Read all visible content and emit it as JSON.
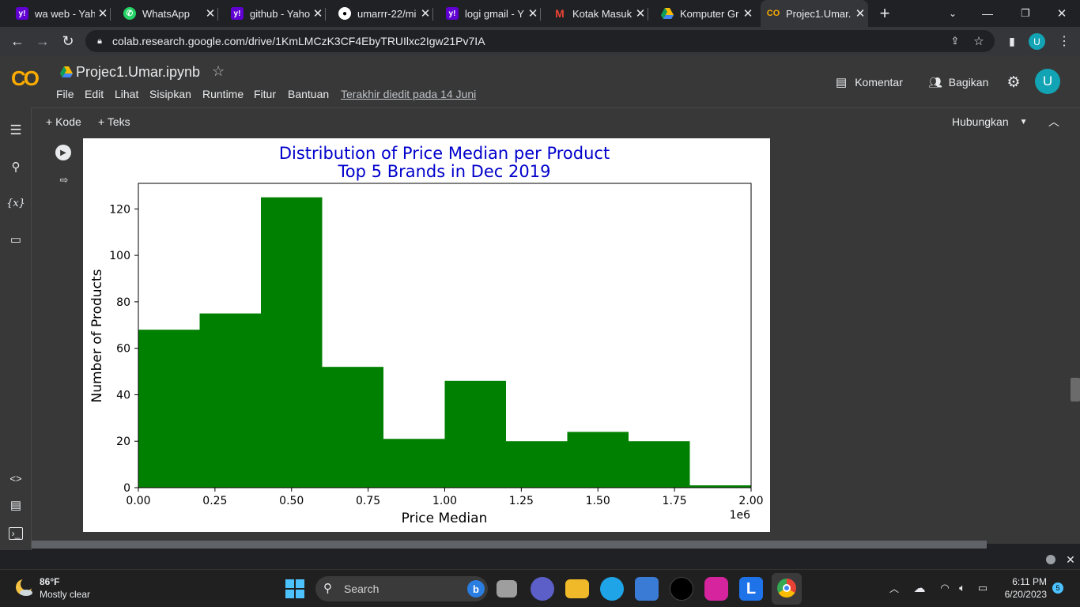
{
  "browser": {
    "tabs": [
      {
        "title": "wa web - Yah",
        "favicon": "yahoo-icon",
        "color": "#6001d2"
      },
      {
        "title": "WhatsApp",
        "favicon": "whatsapp-icon",
        "color": "#25d366"
      },
      {
        "title": "github - Yaho",
        "favicon": "yahoo-icon",
        "color": "#6001d2"
      },
      {
        "title": "umarrr-22/mi",
        "favicon": "github-icon",
        "color": "#ffffff"
      },
      {
        "title": "logi gmail - Y",
        "favicon": "yahoo-icon",
        "color": "#6001d2"
      },
      {
        "title": "Kotak Masuk",
        "favicon": "gmail-icon",
        "color": "#ea4335"
      },
      {
        "title": "Komputer Gr",
        "favicon": "drive-icon",
        "color": "#fbbc04"
      },
      {
        "title": "Projec1.Umar.",
        "favicon": "colab-icon",
        "color": "#f9ab00"
      }
    ],
    "url": "colab.research.google.com/drive/1KmLMCzK3CF4EbyTRUIlxc2Igw21Pv7IA"
  },
  "colab": {
    "logo": "CO",
    "notebook_title": "Projec1.Umar.ipynb",
    "menu": [
      "File",
      "Edit",
      "Lihat",
      "Sisipkan",
      "Runtime",
      "Fitur",
      "Bantuan"
    ],
    "last_edited": "Terakhir diedit pada 14 Juni",
    "comment_label": "Komentar",
    "share_label": "Bagikan",
    "avatar_letter": "U",
    "add_code": "+ Kode",
    "add_text": "+ Teks",
    "connect_label": "Hubungkan"
  },
  "chart_data": {
    "type": "bar",
    "title": "Distribution of Price Median per Product",
    "subtitle": "Top 5 Brands in Dec 2019",
    "xlabel": "Price Median",
    "ylabel": "Number of Products",
    "x_multiplier_label": "1e6",
    "bin_edges": [
      0,
      200000,
      400000,
      600000,
      800000,
      1000000,
      1200000,
      1400000,
      1600000,
      1800000,
      2000000
    ],
    "values": [
      68,
      75,
      125,
      52,
      21,
      46,
      20,
      24,
      20,
      1
    ],
    "xlim": [
      0,
      2000000
    ],
    "ylim": [
      0,
      131
    ],
    "xticks": [
      0,
      250000,
      500000,
      750000,
      1000000,
      1250000,
      1500000,
      1750000,
      2000000
    ],
    "xtick_labels": [
      "0.00",
      "0.25",
      "0.50",
      "0.75",
      "1.00",
      "1.25",
      "1.50",
      "1.75",
      "2.00"
    ],
    "yticks": [
      0,
      20,
      40,
      60,
      80,
      100,
      120
    ],
    "ytick_labels": [
      "0",
      "20",
      "40",
      "60",
      "80",
      "100",
      "120"
    ],
    "bar_color": "#008000",
    "title_color": "#0000cc",
    "grid": false
  },
  "taskbar": {
    "weather_temp": "86°F",
    "weather_desc": "Mostly clear",
    "search_label": "Search",
    "time": "6:11 PM",
    "date": "6/20/2023",
    "notification_count": "5"
  }
}
